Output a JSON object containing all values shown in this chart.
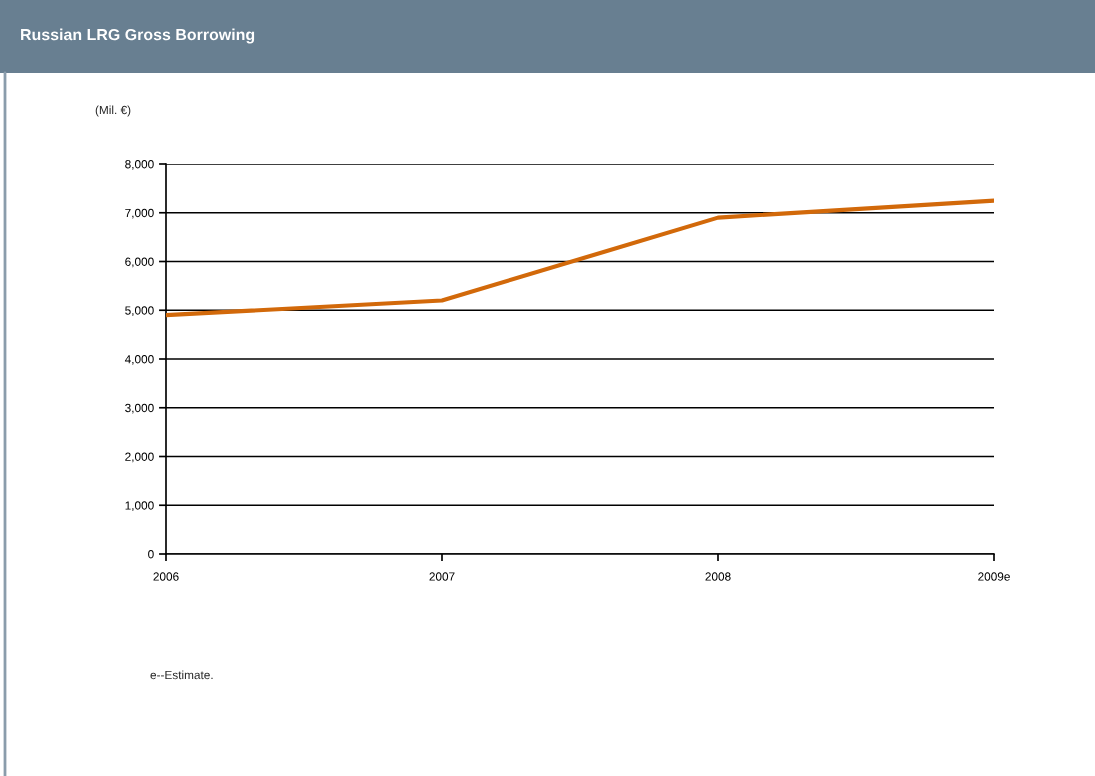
{
  "chart_data": {
    "type": "line",
    "title": "Russian LRG Gross Borrowing",
    "ylabel": "(Mil. €)",
    "categories": [
      "2006",
      "2007",
      "2008",
      "2009e"
    ],
    "series": [
      {
        "color": "#d2690a",
        "values": [
          4900,
          5200,
          6900,
          7250
        ]
      }
    ],
    "ylim": [
      0,
      8000
    ],
    "yticks": [
      0,
      {
        "value": 1000,
        "label": "1,000"
      },
      {
        "value": 2000,
        "label": "2,000"
      },
      {
        "value": 3000,
        "label": "3,000"
      },
      {
        "value": 4000,
        "label": "4,000"
      },
      {
        "value": 5000,
        "label": "5,000"
      },
      {
        "value": 6000,
        "label": "6,000"
      },
      {
        "value": 7000,
        "label": "7,000"
      },
      {
        "value": 8000,
        "label": "8,000"
      }
    ],
    "grid": "y",
    "annotations": [
      "e--Estimate."
    ]
  }
}
